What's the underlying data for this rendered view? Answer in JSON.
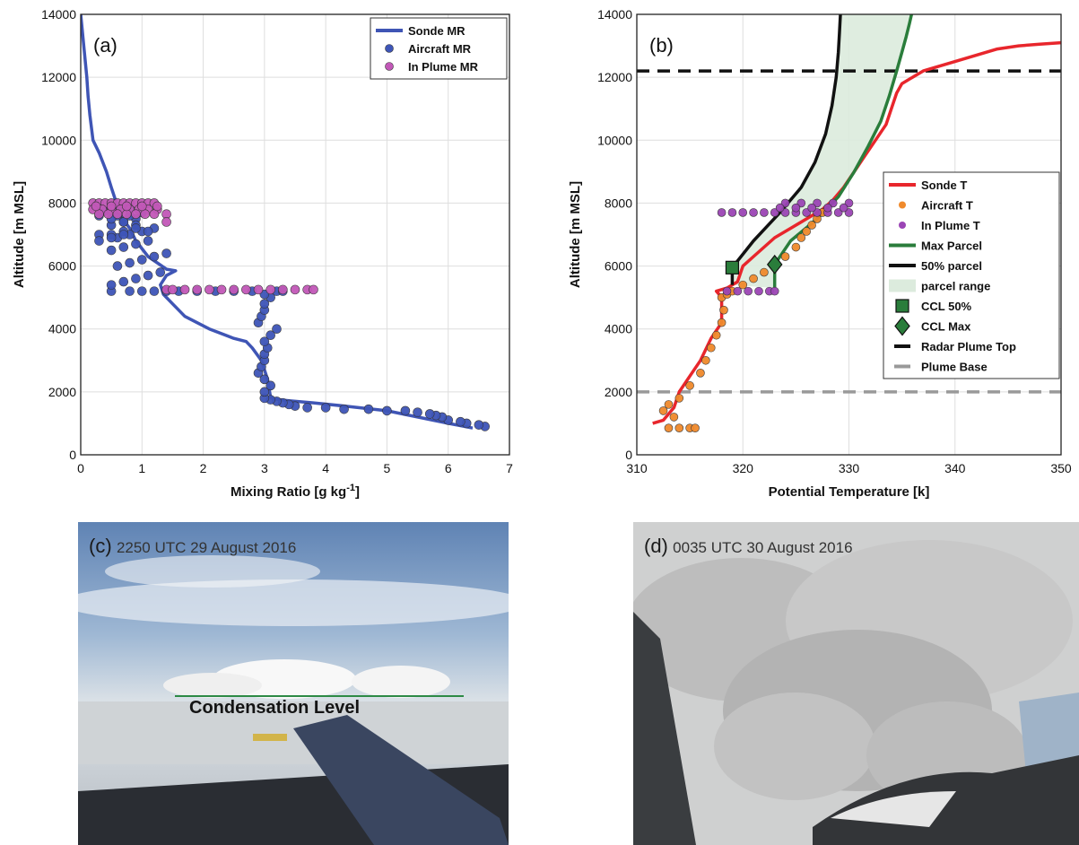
{
  "chart_data": [
    {
      "panel_label": "(a)",
      "type": "scatter",
      "xlabel": "Mixing Ratio [g kg",
      "xlabel_sup": "-1",
      "xlabel_end": "]",
      "ylabel": "Altitude [m MSL]",
      "xlim": [
        0,
        7
      ],
      "ylim": [
        0,
        14000
      ],
      "xticks": [
        "0",
        "1",
        "2",
        "3",
        "4",
        "5",
        "6",
        "7"
      ],
      "yticks": [
        "0",
        "2000",
        "4000",
        "6000",
        "8000",
        "10000",
        "12000",
        "14000"
      ],
      "grid": true,
      "legend_position": "top-right",
      "legend": [
        "Sonde MR",
        "Aircraft MR",
        "In Plume MR"
      ],
      "series": [
        {
          "name": "Sonde MR",
          "kind": "line",
          "color": "#3f55b5",
          "x": [
            6.4,
            6.0,
            5.5,
            5.0,
            4.3,
            3.8,
            3.4,
            3.2,
            3.1,
            3.05,
            2.95,
            2.8,
            2.7,
            2.5,
            2.1,
            1.7,
            1.5,
            1.35,
            1.3,
            1.4,
            1.55,
            1.4,
            1.1,
            0.9,
            0.8,
            0.65,
            0.6,
            0.5,
            0.42,
            0.3,
            0.2,
            0.15,
            0.12,
            0.1,
            0.05,
            0.0
          ],
          "y": [
            850,
            1000,
            1200,
            1400,
            1550,
            1650,
            1720,
            1760,
            1820,
            2400,
            3000,
            3400,
            3600,
            3700,
            4000,
            4400,
            4800,
            5100,
            5400,
            5700,
            5850,
            5900,
            6300,
            6800,
            7200,
            7600,
            7900,
            8500,
            9000,
            9600,
            10000,
            10800,
            11400,
            12000,
            13000,
            14000
          ]
        },
        {
          "name": "Aircraft MR",
          "kind": "points",
          "color": "#3e55b8",
          "x": [
            6.6,
            6.5,
            6.3,
            6.2,
            6.0,
            5.9,
            5.8,
            5.7,
            5.5,
            5.3,
            5.0,
            4.7,
            4.3,
            4.0,
            3.7,
            3.5,
            3.4,
            3.3,
            3.2,
            3.1,
            3.0,
            3.0,
            3.1,
            3.0,
            2.9,
            2.95,
            3.0,
            3.0,
            3.05,
            3.0,
            3.1,
            3.2,
            2.9,
            2.95,
            3.0,
            3.0,
            3.1,
            3.0,
            3.2,
            3.3,
            2.8,
            2.5,
            2.2,
            1.9,
            1.6,
            1.4,
            1.2,
            1.0,
            0.8,
            0.5,
            0.5,
            0.7,
            0.9,
            1.1,
            1.3,
            0.6,
            0.8,
            1.0,
            1.2,
            1.4,
            0.5,
            0.7,
            0.9,
            1.1,
            0.6,
            0.8,
            1.0,
            1.2,
            0.5,
            0.7,
            0.9,
            0.6,
            0.8,
            1.0,
            0.4,
            0.6,
            0.8,
            0.3,
            0.5,
            0.7,
            0.9,
            0.3,
            0.5,
            0.7,
            0.9,
            1.1,
            0.3,
            0.5,
            0.7
          ],
          "y": [
            900,
            950,
            1000,
            1050,
            1100,
            1200,
            1250,
            1300,
            1350,
            1400,
            1400,
            1450,
            1450,
            1500,
            1500,
            1550,
            1600,
            1650,
            1700,
            1750,
            1800,
            2000,
            2200,
            2400,
            2600,
            2800,
            3000,
            3200,
            3400,
            3600,
            3800,
            4000,
            4200,
            4400,
            4600,
            4800,
            5000,
            5100,
            5200,
            5200,
            5200,
            5200,
            5200,
            5200,
            5200,
            5200,
            5200,
            5200,
            5200,
            5200,
            5400,
            5500,
            5600,
            5700,
            5800,
            6000,
            6100,
            6200,
            6300,
            6400,
            6500,
            6600,
            6700,
            6800,
            6900,
            7000,
            7100,
            7200,
            7300,
            7400,
            7500,
            7600,
            7600,
            7700,
            7750,
            7800,
            7850,
            7600,
            7500,
            7400,
            7300,
            7000,
            7000,
            7100,
            7200,
            7100,
            6800,
            6900,
            7000
          ]
        },
        {
          "name": "In Plume MR",
          "kind": "points",
          "color": "#c258b8",
          "x": [
            0.2,
            0.3,
            0.4,
            0.5,
            0.6,
            0.7,
            0.8,
            0.9,
            1.0,
            1.1,
            1.2,
            0.2,
            0.35,
            0.5,
            0.65,
            0.8,
            0.95,
            1.1,
            1.25,
            0.3,
            0.45,
            0.6,
            0.75,
            0.9,
            1.05,
            1.2,
            1.4,
            0.25,
            0.5,
            0.75,
            1.0,
            1.25,
            1.4,
            1.4,
            1.5,
            1.7,
            1.9,
            2.1,
            2.3,
            2.5,
            2.7,
            2.9,
            3.1,
            3.3,
            3.5,
            3.7,
            3.8
          ],
          "y": [
            8000,
            8000,
            8000,
            8000,
            8000,
            8000,
            8000,
            8000,
            8000,
            8000,
            8000,
            7800,
            7800,
            7800,
            7800,
            7800,
            7800,
            7800,
            7800,
            7650,
            7650,
            7650,
            7650,
            7650,
            7650,
            7650,
            7650,
            7900,
            7900,
            7900,
            7900,
            7900,
            7400,
            5250,
            5250,
            5250,
            5250,
            5250,
            5250,
            5250,
            5250,
            5250,
            5250,
            5250,
            5250,
            5250,
            5250
          ]
        }
      ]
    },
    {
      "panel_label": "(b)",
      "type": "line",
      "xlabel": "Potential Temperature [k]",
      "ylabel": "Altitude [m MSL]",
      "xlim": [
        310,
        350
      ],
      "ylim": [
        0,
        14000
      ],
      "xticks": [
        "310",
        "320",
        "330",
        "340",
        "350"
      ],
      "yticks": [
        "0",
        "2000",
        "4000",
        "6000",
        "8000",
        "10000",
        "12000",
        "14000"
      ],
      "grid": true,
      "legend_position": "right",
      "legend": [
        "Sonde T",
        "Aircraft T",
        "In Plume T",
        "Max Parcel",
        "50% parcel",
        "parcel range",
        "CCL 50%",
        "CCL Max",
        "Radar Plume Top",
        "Plume Base"
      ],
      "series": [
        {
          "name": "Sonde T",
          "kind": "line",
          "color": "#e8262c",
          "x": [
            311.5,
            312.5,
            313.5,
            314.0,
            315.0,
            316.0,
            317.0,
            318.0,
            318.0,
            317.5,
            318.5,
            319.5,
            320.0,
            321.0,
            322.0,
            323.0,
            324.5,
            326.0,
            327.5,
            328.5,
            329.5,
            330.5,
            331.5,
            332.5,
            333.5,
            334.0,
            334.5,
            335.0,
            336.0,
            337.0,
            338.0,
            340.0,
            343.0,
            344.0,
            346.0,
            348.0,
            350.0
          ],
          "y": [
            1000,
            1100,
            1500,
            2000,
            2500,
            3000,
            3700,
            4200,
            5000,
            5200,
            5300,
            5500,
            6000,
            6300,
            6600,
            6900,
            7200,
            7500,
            7800,
            8100,
            8500,
            9000,
            9500,
            10000,
            10500,
            11000,
            11500,
            11800,
            12000,
            12200,
            12300,
            12500,
            12800,
            12900,
            13000,
            13050,
            13100
          ]
        },
        {
          "name": "Aircraft T",
          "kind": "points",
          "color": "#f08a2c",
          "x": [
            313.0,
            314.0,
            315.0,
            315.5,
            313.5,
            312.5,
            313.0,
            314.0,
            315.0,
            316.0,
            316.5,
            317.0,
            317.5,
            318.0,
            318.2,
            318.0,
            318.5,
            319.0,
            320.0,
            321.0,
            322.0,
            323.0,
            324.0,
            325.0,
            325.5,
            326.0,
            326.5,
            327.0,
            327.5
          ],
          "y": [
            850,
            850,
            850,
            850,
            1200,
            1400,
            1600,
            1800,
            2200,
            2600,
            3000,
            3400,
            3800,
            4200,
            4600,
            5000,
            5100,
            5200,
            5400,
            5600,
            5800,
            6100,
            6300,
            6600,
            6900,
            7100,
            7300,
            7500,
            7700
          ]
        },
        {
          "name": "In Plume T",
          "kind": "points",
          "color": "#9b45b5",
          "x": [
            318.0,
            319.0,
            320.0,
            321.0,
            322.0,
            323.0,
            324.0,
            325.0,
            326.0,
            327.0,
            328.0,
            329.0,
            330.0,
            324.0,
            325.5,
            327.0,
            328.5,
            330.0,
            323.5,
            325.0,
            326.5,
            328.0,
            329.5,
            318.5,
            319.5,
            320.5,
            321.5,
            322.5,
            323.0
          ],
          "y": [
            7700,
            7700,
            7700,
            7700,
            7700,
            7700,
            7700,
            7700,
            7700,
            7700,
            7700,
            7700,
            7700,
            8000,
            8000,
            8000,
            8000,
            8000,
            7850,
            7850,
            7850,
            7850,
            7850,
            5200,
            5200,
            5200,
            5200,
            5200,
            5200
          ]
        },
        {
          "name": "Max Parcel",
          "kind": "line",
          "color": "#2a7d3b",
          "x": [
            323.0,
            323.0,
            324.5,
            327.0,
            329.0,
            330.5,
            331.8,
            333.0,
            333.8,
            334.5,
            335.0,
            335.4,
            335.7,
            335.9
          ],
          "y": [
            5300,
            6050,
            6800,
            7500,
            8200,
            9000,
            9800,
            10600,
            11400,
            12200,
            12800,
            13300,
            13700,
            14000
          ]
        },
        {
          "name": "50% parcel",
          "kind": "line",
          "color": "#111111",
          "x": [
            319.0,
            319.0,
            321.0,
            323.5,
            325.5,
            326.8,
            327.8,
            328.4,
            328.8,
            329.0,
            329.1,
            329.2
          ],
          "y": [
            5400,
            5950,
            6800,
            7700,
            8500,
            9300,
            10200,
            11100,
            12000,
            12800,
            13400,
            14000
          ]
        },
        {
          "name": "parcel range",
          "kind": "fill",
          "color": "#dcebdd"
        },
        {
          "name": "CCL 50%",
          "kind": "marker",
          "color": "#2a7d3b",
          "x": [
            319.0
          ],
          "y": [
            5950
          ]
        },
        {
          "name": "CCL Max",
          "kind": "marker",
          "color": "#2a7d3b",
          "x": [
            323.0
          ],
          "y": [
            6050
          ]
        },
        {
          "name": "Radar Plume Top",
          "kind": "hline",
          "color": "#111111",
          "y": 12200
        },
        {
          "name": "Plume Base",
          "kind": "hline",
          "color": "#999999",
          "y": 2000
        }
      ]
    }
  ],
  "photos": {
    "c": {
      "label": "(c)",
      "timestamp": "2250 UTC 29 August 2016",
      "annotation": "Condensation Level"
    },
    "d": {
      "label": "(d)",
      "timestamp": "0035 UTC 30 August 2016"
    }
  }
}
